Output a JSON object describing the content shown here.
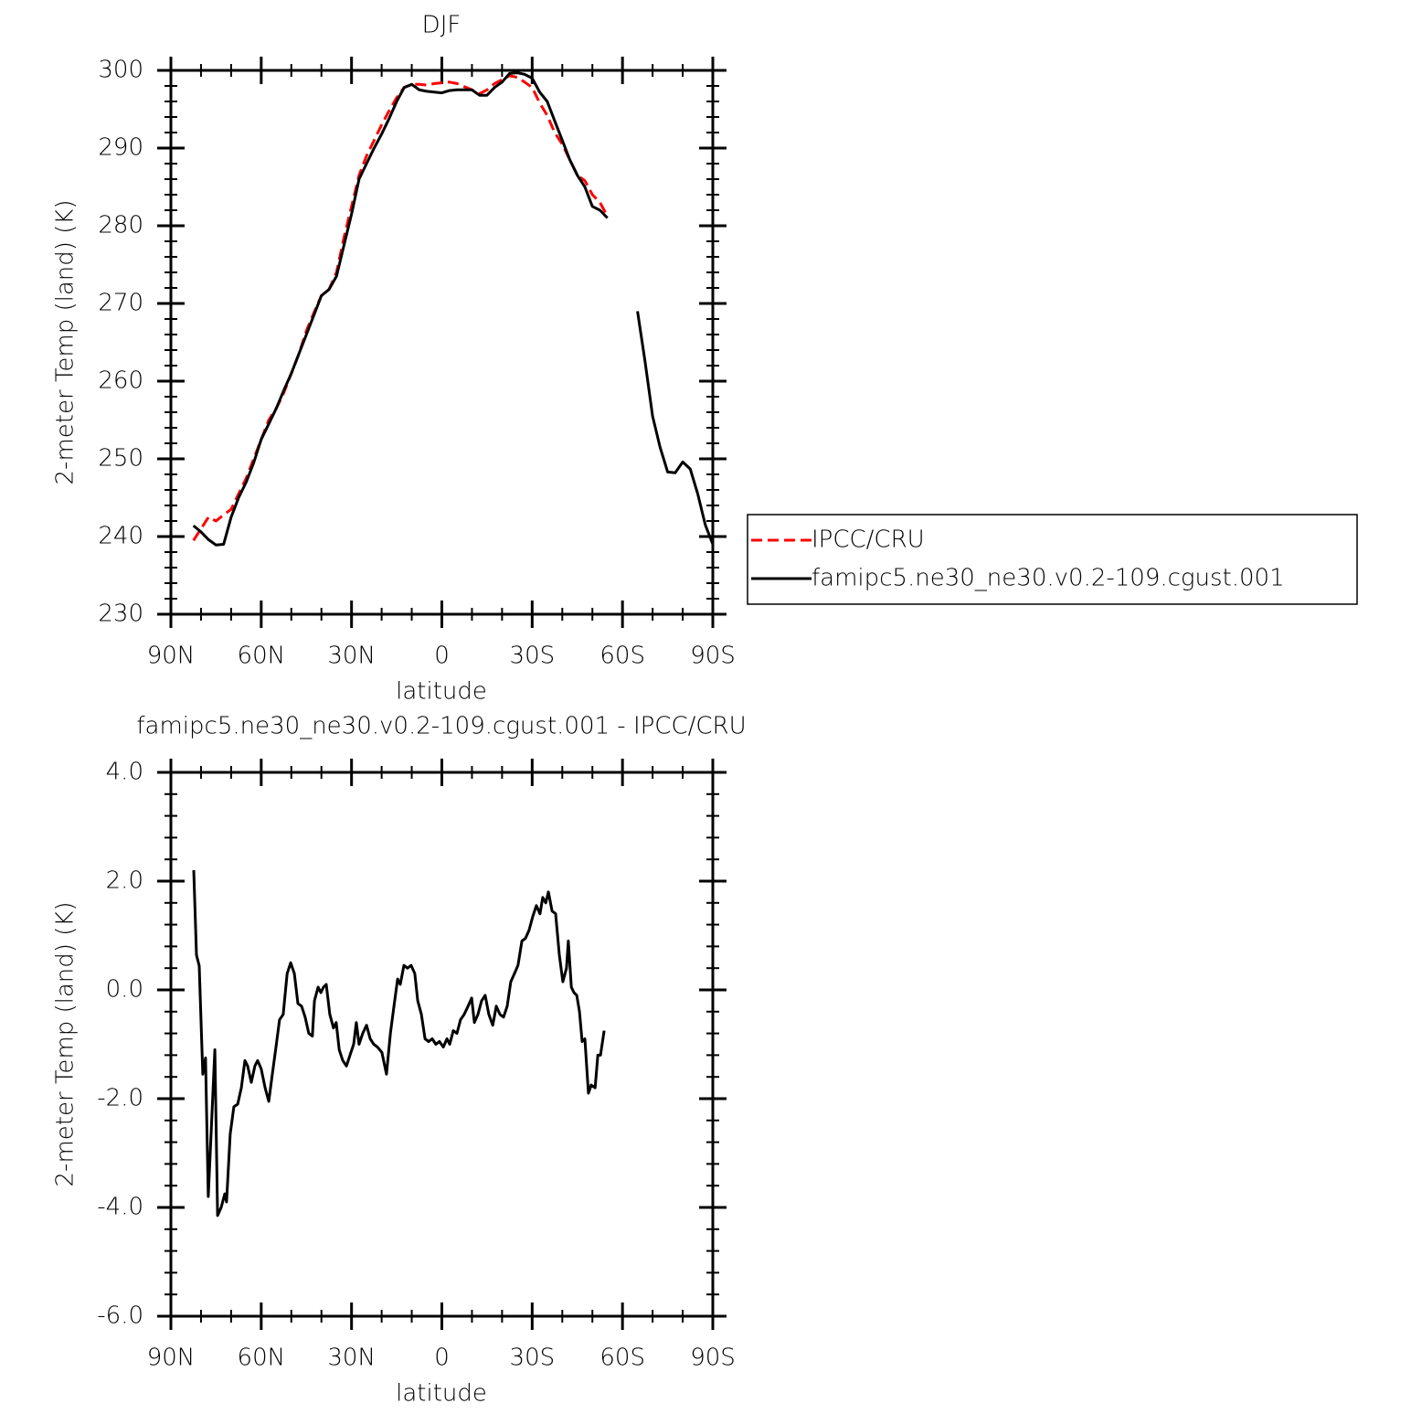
{
  "chart_data": [
    {
      "type": "line",
      "title": "DJF",
      "x_label": "latitude",
      "y_label": "2-meter Temp (land) (K)",
      "xlim": [
        90,
        -90
      ],
      "xticks": [
        {
          "value": 90,
          "label": "90N"
        },
        {
          "value": 60,
          "label": "60N"
        },
        {
          "value": 30,
          "label": "30N"
        },
        0,
        {
          "value": -30,
          "label": "30S"
        },
        {
          "value": -60,
          "label": "60S"
        },
        {
          "value": -90,
          "label": "90S"
        }
      ],
      "ylim": [
        230,
        300
      ],
      "yticks": [
        230,
        240,
        250,
        260,
        270,
        280,
        290,
        300
      ],
      "legend": "right",
      "x": [
        82.5,
        80,
        77.5,
        75,
        72.5,
        70,
        67.5,
        65,
        62.5,
        60,
        57.5,
        55,
        52.5,
        50,
        47.5,
        45,
        42.5,
        40,
        37.5,
        35,
        32.5,
        30,
        27.5,
        25,
        22.5,
        20,
        17.5,
        15,
        12.5,
        10,
        7.5,
        5,
        2.5,
        0,
        -2.5,
        -5,
        -7.5,
        -10,
        -12.5,
        -15,
        -17.5,
        -20,
        -22.5,
        -25,
        -27.5,
        -30,
        -32.5,
        -35,
        -37.5,
        -40,
        -42.5,
        -45,
        -47.5,
        -50,
        -52.5,
        -55,
        -57.5,
        -60,
        -62.5,
        -65,
        -67.5,
        -70,
        -72.5,
        -75,
        -77.5,
        -80,
        -82.5,
        -85,
        -87.5,
        -90
      ],
      "series": [
        {
          "name": "IPCC/CRU",
          "color": "#ff0000",
          "line_style": "dashed",
          "values": [
            239.5,
            241,
            242.5,
            242,
            242.8,
            243.5,
            245.5,
            247.5,
            250,
            252.5,
            255,
            256.5,
            258.5,
            261,
            263.5,
            266.5,
            268.8,
            271,
            271.8,
            274,
            278.5,
            282.5,
            286.5,
            289,
            291,
            293,
            294.8,
            296.5,
            297.8,
            298.2,
            298.2,
            298.1,
            298.3,
            298.4,
            298.5,
            298.3,
            297.9,
            297.5,
            297,
            297.5,
            298.3,
            298.8,
            299.3,
            299.1,
            298.5,
            297.8,
            295.8,
            294.2,
            292,
            290.5,
            288.5,
            286.5,
            285.8,
            284,
            283,
            281.2,
            null,
            null,
            null,
            null,
            null,
            null,
            null,
            null,
            null,
            null,
            null,
            null,
            null,
            null
          ]
        },
        {
          "name": "famipc5.ne30_ne30.v0.2-109.cgust.001",
          "color": "#000000",
          "line_style": "solid",
          "values": [
            241.4,
            240.6,
            239.6,
            238.9,
            239,
            242.5,
            245,
            247,
            249.5,
            252.5,
            254.5,
            256.5,
            258.8,
            261,
            263.5,
            266,
            268.5,
            271,
            271.8,
            273.5,
            277.5,
            281.5,
            286,
            288,
            290,
            291.8,
            293.8,
            296,
            297.8,
            298.2,
            297.5,
            297.3,
            297.2,
            297.1,
            297.4,
            297.5,
            297.5,
            297.5,
            296.8,
            296.8,
            297.8,
            298.5,
            299.6,
            299.7,
            299.5,
            299,
            297.2,
            296,
            293.5,
            291,
            288.5,
            286.5,
            285,
            282.5,
            282,
            281,
            null,
            null,
            null,
            269,
            262.5,
            255.5,
            251.5,
            248.3,
            248.2,
            249.6,
            248.7,
            245.5,
            241.5,
            239
          ]
        }
      ]
    },
    {
      "type": "line",
      "title": "famipc5.ne30_ne30.v0.2-109.cgust.001 - IPCC/CRU",
      "x_label": "latitude",
      "y_label": "2-meter Temp (land) (K)",
      "xlim": [
        90,
        -90
      ],
      "xticks": [
        {
          "value": 90,
          "label": "90N"
        },
        {
          "value": 60,
          "label": "60N"
        },
        {
          "value": 30,
          "label": "30N"
        },
        0,
        {
          "value": -30,
          "label": "30S"
        },
        {
          "value": -60,
          "label": "60S"
        },
        {
          "value": -90,
          "label": "90S"
        }
      ],
      "ylim": [
        -6,
        4
      ],
      "yticks": [
        {
          "value": -6,
          "label": "-6.0"
        },
        {
          "value": -4,
          "label": "-4.0"
        },
        {
          "value": -2,
          "label": "-2.0"
        },
        {
          "value": 0,
          "label": "0.0"
        },
        {
          "value": 2,
          "label": "2.0"
        },
        {
          "value": 4,
          "label": "4.0"
        }
      ],
      "color": "#000000",
      "x": [
        82.4,
        81.5,
        80.6,
        79.4,
        78.5,
        77.6,
        75.4,
        74.5,
        73.3,
        72.1,
        71.5,
        70.3,
        69.1,
        67.8,
        66.6,
        65.4,
        64.5,
        63.3,
        62.1,
        61.2,
        60.0,
        58.7,
        57.5,
        56.3,
        55.1,
        53.9,
        52.7,
        51.4,
        50.2,
        49.0,
        47.8,
        46.6,
        45.4,
        44.2,
        43.0,
        42.3,
        41.1,
        40.2,
        39.3,
        38.4,
        37.2,
        36.0,
        35.1,
        34.1,
        32.9,
        31.7,
        30.5,
        29.3,
        28.4,
        27.5,
        26.3,
        25.0,
        23.8,
        22.6,
        21.4,
        19.9,
        18.4,
        17.1,
        15.9,
        14.7,
        13.8,
        12.6,
        11.4,
        10.2,
        9.0,
        8.0,
        6.8,
        5.6,
        4.4,
        3.2,
        2.0,
        0.8,
        -0.5,
        -1.7,
        -2.6,
        -3.8,
        -5.0,
        -6.2,
        -7.4,
        -8.7,
        -9.9,
        -10.8,
        -12.0,
        -13.2,
        -14.4,
        -15.6,
        -16.9,
        -18.1,
        -19.3,
        -20.5,
        -21.7,
        -22.9,
        -24.1,
        -25.3,
        -26.6,
        -27.8,
        -29.0,
        -30.2,
        -31.4,
        -32.6,
        -33.5,
        -34.5,
        -35.4,
        -36.6,
        -37.8,
        -39.0,
        -40.2,
        -41.4,
        -42.0,
        -43.0,
        -43.9,
        -44.8,
        -45.7,
        -46.6,
        -47.5,
        -48.7,
        -49.6,
        -50.9,
        -51.8,
        -52.7,
        -53.9
      ],
      "values": [
        2.2,
        0.64,
        0.44,
        -1.55,
        -1.25,
        -3.8,
        -1.1,
        -4.15,
        -4.0,
        -3.75,
        -3.9,
        -2.65,
        -2.15,
        -2.1,
        -1.8,
        -1.3,
        -1.4,
        -1.7,
        -1.4,
        -1.3,
        -1.45,
        -1.8,
        -2.05,
        -1.55,
        -1.05,
        -0.55,
        -0.45,
        0.3,
        0.5,
        0.3,
        -0.25,
        -0.3,
        -0.5,
        -0.8,
        -0.85,
        -0.2,
        0.05,
        -0.05,
        0.05,
        0.1,
        -0.45,
        -0.7,
        -0.6,
        -1.1,
        -1.3,
        -1.4,
        -1.2,
        -1.0,
        -0.6,
        -1.0,
        -0.8,
        -0.65,
        -0.9,
        -1.0,
        -1.05,
        -1.15,
        -1.55,
        -0.8,
        -0.3,
        0.2,
        0.1,
        0.45,
        0.4,
        0.45,
        0.3,
        -0.2,
        -0.45,
        -0.9,
        -0.95,
        -0.9,
        -1.0,
        -0.95,
        -1.05,
        -0.9,
        -1.0,
        -0.75,
        -0.8,
        -0.55,
        -0.45,
        -0.3,
        -0.15,
        -0.6,
        -0.45,
        -0.2,
        -0.1,
        -0.45,
        -0.65,
        -0.3,
        -0.45,
        -0.5,
        -0.3,
        0.15,
        0.3,
        0.45,
        0.9,
        0.95,
        1.1,
        1.35,
        1.55,
        1.4,
        1.7,
        1.6,
        1.8,
        1.45,
        1.4,
        0.65,
        0.15,
        0.4,
        0.9,
        0.05,
        -0.05,
        -0.1,
        -0.4,
        -0.95,
        -0.9,
        -1.9,
        -1.75,
        -1.8,
        -1.2,
        -1.2,
        -0.75
      ]
    }
  ]
}
